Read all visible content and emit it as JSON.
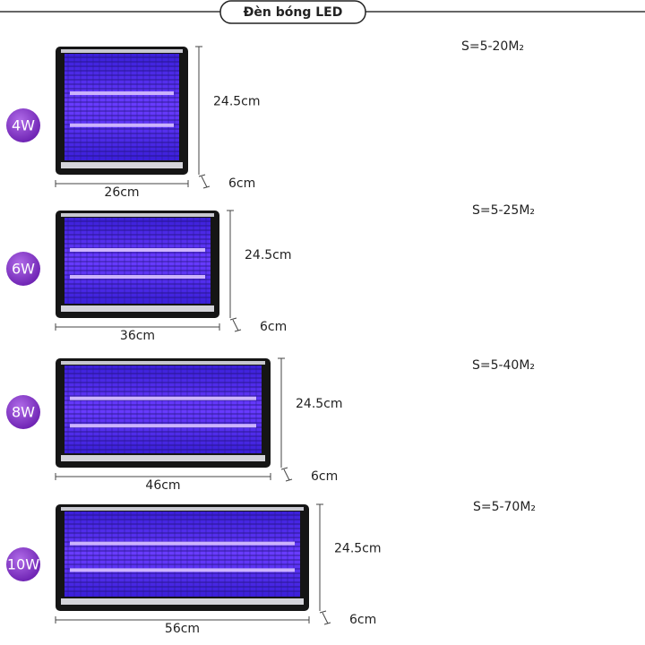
{
  "header": {
    "title": "Đèn bóng LED"
  },
  "products": [
    {
      "power": "4W",
      "height": "24.5cm",
      "width": "26cm",
      "depth": "6cm",
      "area": "S=5-20M₂"
    },
    {
      "power": "6W",
      "height": "24.5cm",
      "width": "36cm",
      "depth": "6cm",
      "area": "S=5-25M₂"
    },
    {
      "power": "8W",
      "height": "24.5cm",
      "width": "46cm",
      "depth": "6cm",
      "area": "S=5-40M₂"
    },
    {
      "power": "10W",
      "height": "24.5cm",
      "width": "56cm",
      "depth": "6cm",
      "area": "S=5-70M₂"
    }
  ]
}
